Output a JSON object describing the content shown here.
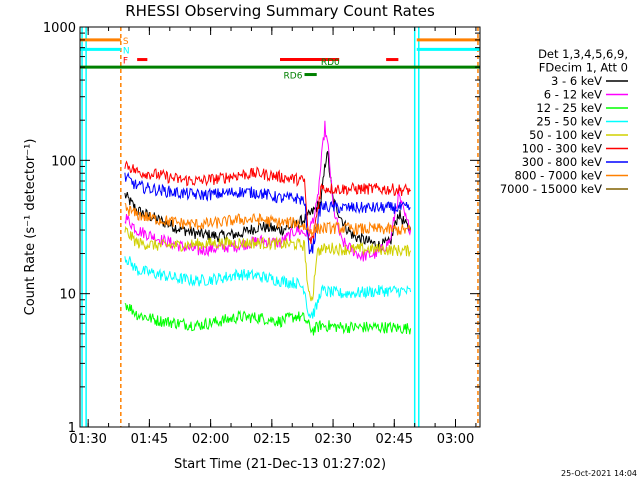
{
  "chart_data": {
    "type": "line",
    "title": "RHESSI Observing Summary Count Rates",
    "xlabel": "Start Time (21-Dec-13 01:27:02)",
    "ylabel": "Count Rate (s⁻¹ detector⁻¹)",
    "yscale": "log",
    "ylim": [
      1,
      1000
    ],
    "xlim_minutes": [
      1.0,
      99.0
    ],
    "x_tick_labels": [
      "01:30",
      "01:45",
      "02:00",
      "02:15",
      "02:30",
      "02:45",
      "03:00"
    ],
    "x_tick_minutes": [
      3,
      18,
      33,
      48,
      63,
      78,
      93
    ],
    "y_tick_labels": [
      "1",
      "10",
      "100",
      "1000"
    ],
    "y_tick_values": [
      1,
      10,
      100,
      1000
    ],
    "legend_header": [
      "Det 1,3,4,5,6,9,",
      "FDecim 1, Att 0"
    ],
    "legend_position": "right",
    "timestamp": "25-Oct-2021 14:04",
    "flags": [
      {
        "label": "S",
        "color": "#ff8000",
        "level": 800,
        "intervals": [
          [
            1,
            11
          ],
          [
            83.5,
            99
          ]
        ]
      },
      {
        "label": "N",
        "color": "#00ffff",
        "level": 680,
        "intervals": [
          [
            1,
            11
          ],
          [
            83.5,
            99
          ]
        ]
      },
      {
        "label": "F",
        "color": "#ff0000",
        "level": 570,
        "intervals": [
          [
            15,
            17.5
          ],
          [
            50,
            64.5
          ],
          [
            76,
            79
          ]
        ]
      },
      {
        "label": "RD0",
        "color": "#008000",
        "level": 500,
        "intervals": [
          [
            1,
            99
          ]
        ]
      },
      {
        "label": "RD6",
        "color": "#008000",
        "level": 440,
        "intervals": [
          [
            56,
            59
          ]
        ]
      }
    ],
    "vlines_minutes": [
      {
        "x": 1.5,
        "color": "#00ffff",
        "style": "solid"
      },
      {
        "x": 2.5,
        "color": "#00ffff",
        "style": "solid"
      },
      {
        "x": 11,
        "color": "#ff8000",
        "style": "dashed"
      },
      {
        "x": 83,
        "color": "#00ffff",
        "style": "solid"
      },
      {
        "x": 84,
        "color": "#00ffff",
        "style": "solid"
      },
      {
        "x": 98.5,
        "color": "#ff8000",
        "style": "dashed"
      }
    ],
    "series": [
      {
        "name": "3 - 6 keV",
        "color": "#000000",
        "x": [
          12,
          15,
          20,
          25,
          30,
          35,
          40,
          45,
          50,
          54,
          57,
          60,
          61.5,
          63,
          66,
          68,
          71,
          74,
          77,
          79,
          81,
          82
        ],
        "y": [
          55,
          42,
          36,
          31,
          28,
          27,
          28,
          32,
          30,
          33,
          38,
          48,
          120,
          50,
          32,
          27,
          25,
          23,
          24,
          40,
          32,
          30
        ]
      },
      {
        "name": "6 - 12 keV",
        "color": "#ff00ff",
        "x": [
          12,
          15,
          20,
          25,
          30,
          35,
          40,
          45,
          50,
          54,
          57,
          59,
          61,
          62,
          63,
          65,
          67,
          70,
          74,
          77,
          79,
          81,
          82
        ],
        "y": [
          38,
          30,
          26,
          23,
          21,
          22,
          23,
          25,
          24,
          30,
          28,
          45,
          180,
          110,
          45,
          25,
          22,
          19,
          20,
          25,
          55,
          35,
          30
        ]
      },
      {
        "name": "12 - 25 keV",
        "color": "#00ff00",
        "x": [
          12,
          15,
          20,
          25,
          30,
          35,
          40,
          45,
          50,
          54,
          56,
          57,
          58,
          60,
          65,
          70,
          75,
          80,
          82
        ],
        "y": [
          8.5,
          7,
          6.3,
          6,
          5.8,
          6.2,
          6.7,
          6.6,
          6.2,
          6.8,
          6.5,
          5.8,
          5.3,
          5.8,
          5.6,
          5.6,
          5.6,
          5.5,
          5.5
        ]
      },
      {
        "name": "25 - 50 keV",
        "color": "#00ffff",
        "x": [
          12,
          15,
          20,
          25,
          30,
          35,
          40,
          45,
          50,
          54,
          56,
          57,
          58,
          59,
          60,
          65,
          70,
          75,
          80,
          82
        ],
        "y": [
          19,
          15,
          14,
          13,
          12.5,
          13,
          14,
          13.5,
          12.5,
          12,
          11,
          7,
          7,
          8,
          10.5,
          10,
          10.2,
          10.5,
          10.5,
          10.3
        ]
      },
      {
        "name": "50 - 100 keV",
        "color": "#d0d000",
        "x": [
          12,
          15,
          20,
          25,
          30,
          35,
          40,
          45,
          50,
          54,
          56,
          57,
          58,
          59,
          60,
          63,
          65,
          70,
          75,
          80,
          82
        ],
        "y": [
          30,
          24,
          23,
          23,
          23.5,
          24,
          24,
          24,
          23.5,
          23.5,
          23,
          9.5,
          9.5,
          20,
          21.5,
          22,
          21.5,
          21.5,
          21.5,
          21,
          21
        ]
      },
      {
        "name": "100 - 300 keV",
        "color": "#ff0000",
        "x": [
          12,
          15,
          20,
          25,
          30,
          35,
          40,
          45,
          50,
          54,
          56,
          57,
          58,
          60,
          65,
          70,
          75,
          80,
          82
        ],
        "y": [
          95,
          82,
          78,
          72,
          70,
          73,
          78,
          80,
          75,
          72,
          70,
          25,
          25,
          62,
          61,
          61,
          61,
          60,
          60
        ]
      },
      {
        "name": "300 - 800 keV",
        "color": "#0000ff",
        "x": [
          12,
          15,
          20,
          25,
          30,
          35,
          40,
          45,
          50,
          54,
          56,
          57,
          58,
          60,
          65,
          70,
          75,
          80,
          82
        ],
        "y": [
          75,
          64,
          60,
          57,
          55,
          56,
          58,
          57,
          52,
          52,
          50,
          22,
          22,
          45,
          44,
          44,
          44,
          44,
          44
        ]
      },
      {
        "name": "800 - 7000 keV",
        "color": "#ff8000",
        "x": [
          12,
          15,
          20,
          25,
          30,
          35,
          40,
          45,
          50,
          54,
          56,
          57,
          58,
          60,
          65,
          70,
          75,
          80,
          82
        ],
        "y": [
          44,
          39,
          36,
          34,
          33,
          34,
          36,
          36,
          34,
          34,
          32,
          30,
          30,
          31,
          31,
          30.5,
          30.5,
          30,
          30
        ]
      },
      {
        "name": "7000 - 15000 keV",
        "color": "#806000",
        "x": [],
        "y": []
      }
    ]
  }
}
